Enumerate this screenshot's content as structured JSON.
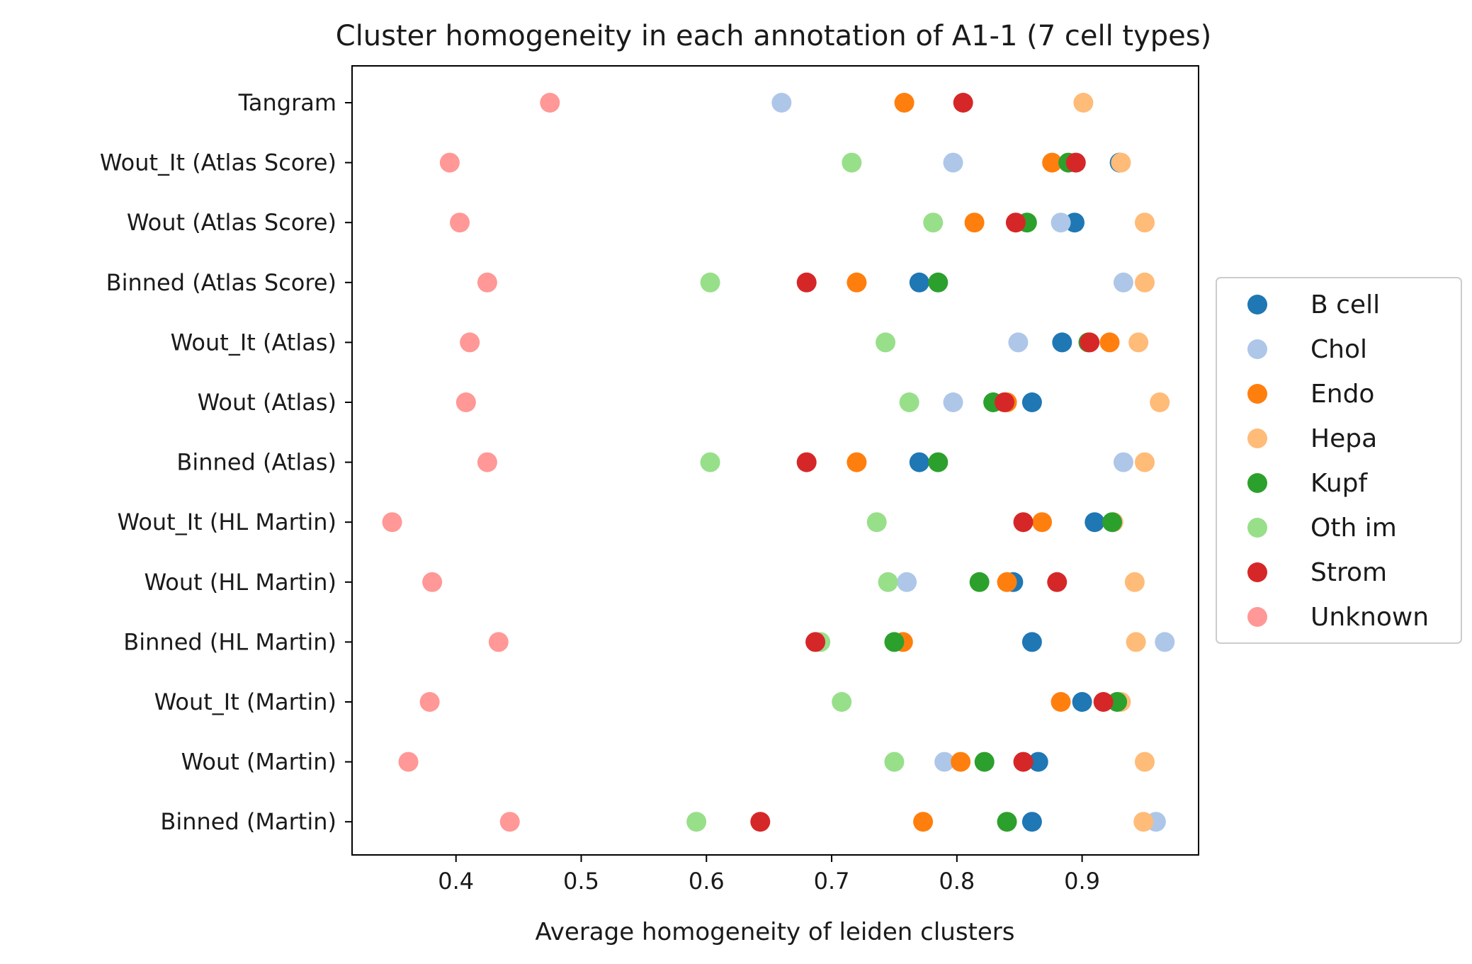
{
  "chart_data": {
    "type": "scatter",
    "title": "Cluster homogeneity in each annotation of A1-1 (7 cell types)",
    "xlabel": "Average homogeneity of leiden clusters",
    "ylabel": "",
    "xlim": [
      0.317,
      0.993
    ],
    "xticks": [
      "0.4",
      "0.5",
      "0.6",
      "0.7",
      "0.8",
      "0.9"
    ],
    "categories": [
      "Tangram",
      "Wout_It (Atlas Score)",
      "Wout (Atlas Score)",
      "Binned (Atlas Score)",
      "Wout_It (Atlas)",
      "Wout (Atlas)",
      "Binned (Atlas)",
      "Wout_It (HL Martin)",
      "Wout (HL Martin)",
      "Binned (HL Martin)",
      "Wout_It (Martin)",
      "Wout (Martin)",
      "Binned (Martin)"
    ],
    "legend_position": "right-center",
    "grid": false,
    "series": [
      {
        "name": "B cell",
        "color": "#1f77b4",
        "values": [
          null,
          0.93,
          0.894,
          0.77,
          0.884,
          0.86,
          0.77,
          0.91,
          0.845,
          0.86,
          0.9,
          0.865,
          0.86
        ]
      },
      {
        "name": "Chol",
        "color": "#aec7e8",
        "values": [
          0.66,
          0.797,
          0.883,
          0.933,
          0.849,
          0.797,
          0.933,
          null,
          0.76,
          0.966,
          null,
          0.79,
          0.959
        ]
      },
      {
        "name": "Endo",
        "color": "#ff7f0e",
        "values": [
          0.758,
          0.876,
          0.814,
          0.72,
          0.922,
          0.84,
          0.72,
          0.868,
          0.84,
          0.757,
          0.883,
          0.803,
          0.773
        ]
      },
      {
        "name": "Hepa",
        "color": "#ffbb78",
        "values": [
          0.901,
          0.931,
          0.95,
          0.95,
          0.945,
          0.962,
          0.95,
          0.925,
          0.942,
          0.943,
          0.931,
          0.95,
          0.949
        ]
      },
      {
        "name": "Kupf",
        "color": "#2ca02c",
        "values": [
          null,
          0.889,
          0.856,
          0.785,
          0.905,
          0.829,
          0.785,
          0.924,
          0.818,
          0.75,
          0.928,
          0.822,
          0.84
        ]
      },
      {
        "name": "Oth im",
        "color": "#98df8a",
        "values": [
          null,
          0.716,
          0.781,
          0.603,
          0.743,
          0.762,
          0.603,
          0.736,
          0.745,
          0.691,
          0.708,
          0.75,
          0.592
        ]
      },
      {
        "name": "Strom",
        "color": "#d62728",
        "values": [
          0.805,
          0.895,
          0.847,
          0.68,
          0.906,
          0.838,
          0.68,
          0.853,
          0.88,
          0.687,
          0.917,
          0.853,
          0.643
        ]
      },
      {
        "name": "Unknown",
        "color": "#ff9896",
        "values": [
          0.475,
          0.395,
          0.403,
          0.425,
          0.411,
          0.408,
          0.425,
          0.349,
          0.381,
          0.434,
          0.379,
          0.362,
          0.443
        ]
      }
    ]
  }
}
